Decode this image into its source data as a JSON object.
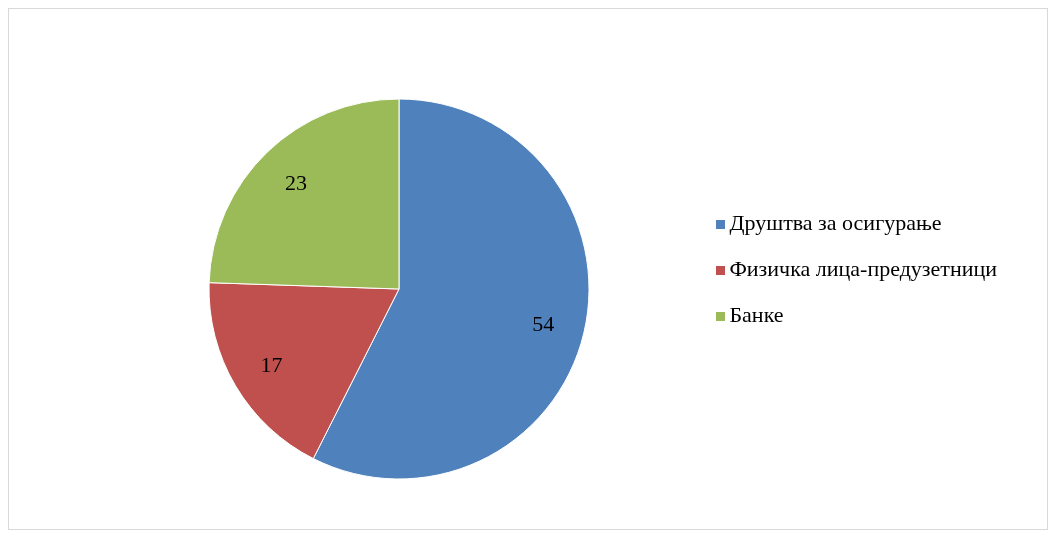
{
  "chart_data": {
    "type": "pie",
    "categories": [
      "Друштва за осигурање",
      "Физичка лица-предузетници",
      "Банке"
    ],
    "values": [
      54,
      17,
      23
    ],
    "colors": [
      "#4f81bd",
      "#c0504d",
      "#9bbb59"
    ],
    "data_labels": true,
    "legend": "right"
  }
}
